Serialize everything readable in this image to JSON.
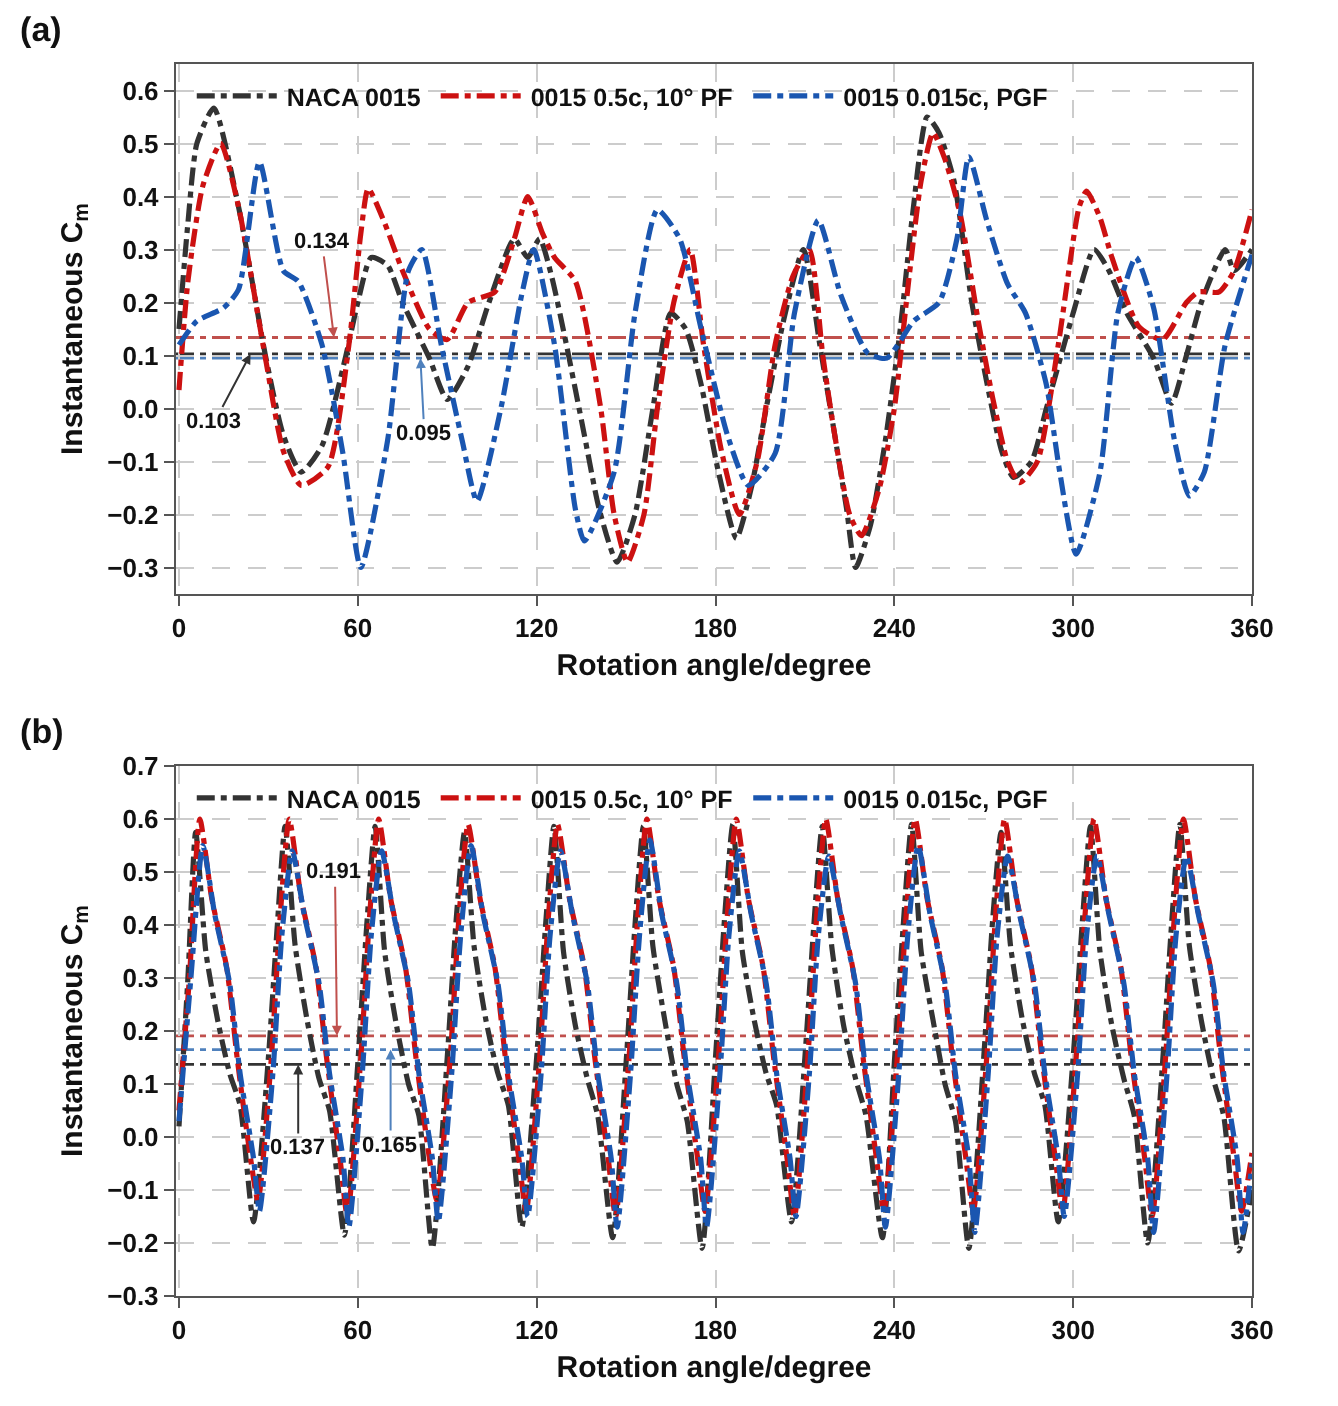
{
  "chart_data": [
    {
      "type": "line",
      "title": "(a)",
      "xlabel": "Rotation angle/degree",
      "ylabel": "Instantaneous C$_{m}$",
      "xlim": [
        -1,
        360
      ],
      "xticks": [
        0,
        60,
        120,
        180,
        240,
        300,
        360
      ],
      "ylim": [
        -0.35,
        0.65
      ],
      "yticks": [
        {
          "value": -0.3,
          "label": "−0.3"
        },
        {
          "value": -0.2,
          "label": "−0.2"
        },
        {
          "value": -0.1,
          "label": "−0.1"
        },
        {
          "value": 0,
          "label": "0.0"
        },
        {
          "value": 0.1,
          "label": "0.1"
        },
        {
          "value": 0.2,
          "label": "0.2"
        },
        {
          "value": 0.3,
          "label": "0.3"
        },
        {
          "value": 0.4,
          "label": "0.4"
        },
        {
          "value": 0.5,
          "label": "0.5"
        },
        {
          "value": 0.6,
          "label": "0.6"
        }
      ],
      "grid": true,
      "legend": "top left",
      "marker": "none",
      "line_style": "dashed",
      "series": [
        {
          "name": "NACA 0015",
          "color": "#333333",
          "x": [
            0,
            3,
            6,
            11.7,
            20,
            29,
            35,
            41,
            48,
            56,
            60,
            64.5,
            70,
            75,
            84,
            90,
            97,
            104,
            112.5,
            117,
            121,
            125,
            130,
            136,
            141,
            147,
            153,
            159,
            165,
            170,
            175,
            181,
            187,
            192,
            197,
            203,
            209.5,
            215,
            220,
            224,
            227,
            232,
            237,
            242,
            246,
            251,
            255,
            260,
            266,
            271,
            276,
            280,
            286,
            291,
            300,
            307,
            312,
            318,
            327,
            333,
            338,
            343,
            351,
            354,
            360
          ],
          "values": [
            0.15,
            0.35,
            0.5,
            0.567,
            0.38,
            0.1,
            -0.05,
            -0.12,
            -0.07,
            0.1,
            0.2,
            0.285,
            0.27,
            0.2,
            0.095,
            0.017,
            0.08,
            0.2,
            0.32,
            0.285,
            0.32,
            0.25,
            0.12,
            -0.05,
            -0.19,
            -0.29,
            -0.2,
            0.0,
            0.18,
            0.15,
            0.05,
            -0.12,
            -0.245,
            -0.15,
            0.0,
            0.17,
            0.3,
            0.12,
            -0.05,
            -0.19,
            -0.3,
            -0.22,
            -0.06,
            0.15,
            0.36,
            0.55,
            0.52,
            0.43,
            0.2,
            0.05,
            -0.08,
            -0.13,
            -0.1,
            0.0,
            0.18,
            0.3,
            0.26,
            0.18,
            0.095,
            0.01,
            0.1,
            0.2,
            0.3,
            0.26,
            0.3
          ]
        },
        {
          "name": "0015 0.5c, 10° PF",
          "color": "#cc1111",
          "x": [
            0,
            3,
            8,
            14,
            20,
            29,
            35,
            41,
            50,
            57,
            61,
            63.5,
            69,
            75,
            84,
            90,
            97,
            106,
            112.5,
            117,
            122,
            126,
            133,
            141.5,
            146,
            150.5,
            156,
            160.5,
            166,
            171.5,
            176,
            182,
            188,
            194,
            200,
            206,
            211.5,
            216,
            220,
            225,
            229,
            235,
            240,
            245,
            249,
            253,
            257,
            262,
            268,
            273,
            278,
            282,
            288,
            295,
            302,
            304.5,
            309,
            313,
            322,
            330,
            338,
            342,
            349,
            354,
            360
          ],
          "values": [
            0.035,
            0.24,
            0.42,
            0.5,
            0.38,
            0.095,
            -0.08,
            -0.145,
            -0.11,
            0.12,
            0.33,
            0.415,
            0.35,
            0.26,
            0.15,
            0.13,
            0.2,
            0.22,
            0.32,
            0.4,
            0.33,
            0.285,
            0.24,
            0.0,
            -0.2,
            -0.29,
            -0.2,
            0.0,
            0.2,
            0.3,
            0.12,
            -0.08,
            -0.2,
            -0.1,
            0.12,
            0.25,
            0.3,
            0.1,
            -0.05,
            -0.2,
            -0.24,
            -0.15,
            0.0,
            0.25,
            0.43,
            0.52,
            0.47,
            0.37,
            0.17,
            0.02,
            -0.1,
            -0.14,
            -0.1,
            0.12,
            0.38,
            0.41,
            0.36,
            0.285,
            0.155,
            0.13,
            0.2,
            0.22,
            0.22,
            0.26,
            0.375
          ]
        },
        {
          "name": "0015 0.015c, PGF",
          "color": "#1a56b0",
          "x": [
            0,
            6,
            15,
            20,
            27,
            35,
            40,
            48,
            55,
            61,
            70,
            77,
            81.5,
            88,
            95,
            100,
            108,
            115,
            119,
            126,
            133,
            136,
            146,
            153,
            160.5,
            168,
            175,
            184,
            191,
            200,
            206.5,
            214.5,
            222,
            231,
            237.5,
            246.5,
            255,
            261,
            265,
            271,
            278,
            284,
            291,
            295.5,
            301,
            309,
            315,
            321,
            327,
            334,
            339,
            344,
            351,
            360
          ],
          "values": [
            0.12,
            0.165,
            0.19,
            0.225,
            0.465,
            0.26,
            0.24,
            0.12,
            -0.085,
            -0.3,
            -0.06,
            0.26,
            0.3,
            0.12,
            -0.06,
            -0.175,
            0.0,
            0.215,
            0.3,
            0.12,
            -0.19,
            -0.25,
            -0.12,
            0.18,
            0.375,
            0.32,
            0.155,
            -0.05,
            -0.145,
            -0.085,
            0.18,
            0.355,
            0.215,
            0.105,
            0.095,
            0.165,
            0.2,
            0.32,
            0.475,
            0.355,
            0.235,
            0.18,
            0.045,
            -0.12,
            -0.275,
            -0.12,
            0.18,
            0.285,
            0.19,
            -0.06,
            -0.165,
            -0.12,
            0.12,
            0.29
          ]
        }
      ],
      "ref_lines": [
        {
          "axis": "y",
          "value": 0.134,
          "color": "#c0504d",
          "line_style": "dashed"
        },
        {
          "axis": "y",
          "value": 0.103,
          "color": "#333333",
          "line_style": "dashed"
        },
        {
          "axis": "y",
          "value": 0.095,
          "color": "#4f81bd",
          "line_style": "dashed"
        }
      ],
      "annotations": [
        {
          "text": "0.134",
          "x": 52,
          "y": 0.134
        },
        {
          "text": "0.103",
          "x": 24,
          "y": 0.103
        },
        {
          "text": "0.095",
          "x": 81,
          "y": 0.095
        }
      ]
    },
    {
      "type": "line",
      "title": "(b)",
      "xlabel": "Rotation angle/degree",
      "ylabel": "Instantaneous C$_{m}$",
      "xlim": [
        -1,
        360
      ],
      "xticks": [
        0,
        60,
        120,
        180,
        240,
        300,
        360
      ],
      "ylim": [
        -0.3,
        0.7
      ],
      "yticks": [
        {
          "value": -0.3,
          "label": "−0.3"
        },
        {
          "value": -0.2,
          "label": "−0.2"
        },
        {
          "value": -0.1,
          "label": "−0.1"
        },
        {
          "value": 0,
          "label": "0.0"
        },
        {
          "value": 0.1,
          "label": "0.1"
        },
        {
          "value": 0.2,
          "label": "0.2"
        },
        {
          "value": 0.3,
          "label": "0.3"
        },
        {
          "value": 0.4,
          "label": "0.4"
        },
        {
          "value": 0.5,
          "label": "0.5"
        },
        {
          "value": 0.6,
          "label": "0.6"
        },
        {
          "value": 0.7,
          "label": "0.7"
        }
      ],
      "grid": true,
      "legend": "top left",
      "marker": "none",
      "line_style": "dashed",
      "series": [
        {
          "name": "NACA 0015",
          "color": "#333333",
          "x": [
            0,
            3,
            5.6,
            9,
            13,
            17,
            20.5,
            25,
            30,
            33,
            35.6,
            39,
            43,
            47,
            50.5,
            55.5,
            60,
            63,
            65.8,
            69,
            73,
            77,
            80.5,
            85,
            90,
            93,
            95.8,
            99,
            103,
            107,
            110.5,
            115,
            120,
            123,
            125.8,
            129,
            133,
            137,
            140.5,
            145.5,
            150,
            153,
            155.8,
            159,
            163,
            167,
            170.5,
            175.5,
            180,
            183,
            185.8,
            189,
            193,
            197,
            200.5,
            205.5,
            210,
            213,
            215.8,
            219,
            223,
            227,
            230.5,
            236,
            240,
            243,
            245.8,
            249,
            253,
            257,
            260.5,
            265,
            270,
            273,
            275.8,
            279,
            283,
            287,
            290.5,
            295,
            300,
            303,
            305.8,
            309,
            313,
            317,
            320.5,
            325,
            330,
            333,
            335.8,
            339,
            343,
            347,
            350.5,
            355.5,
            360
          ],
          "values": [
            0.02,
            0.3,
            0.575,
            0.35,
            0.22,
            0.12,
            0.06,
            -0.16,
            0.15,
            0.4,
            0.586,
            0.36,
            0.22,
            0.11,
            0.05,
            -0.185,
            0.14,
            0.4,
            0.586,
            0.35,
            0.21,
            0.1,
            0.04,
            -0.21,
            0.15,
            0.41,
            0.575,
            0.36,
            0.22,
            0.12,
            0.06,
            -0.17,
            0.15,
            0.4,
            0.586,
            0.35,
            0.21,
            0.11,
            0.04,
            -0.19,
            0.14,
            0.4,
            0.586,
            0.36,
            0.22,
            0.1,
            0.03,
            -0.21,
            0.15,
            0.41,
            0.59,
            0.35,
            0.22,
            0.12,
            0.06,
            -0.16,
            0.15,
            0.4,
            0.586,
            0.36,
            0.21,
            0.11,
            0.04,
            -0.19,
            0.14,
            0.4,
            0.59,
            0.35,
            0.22,
            0.1,
            0.03,
            -0.21,
            0.15,
            0.41,
            0.575,
            0.36,
            0.22,
            0.12,
            0.06,
            -0.16,
            0.15,
            0.4,
            0.586,
            0.35,
            0.21,
            0.11,
            0.04,
            -0.2,
            0.14,
            0.4,
            0.59,
            0.36,
            0.22,
            0.11,
            0.04,
            -0.215,
            -0.1
          ]
        },
        {
          "name": "0015 0.5c, 10° PF",
          "color": "#cc1111",
          "x": [
            0,
            3.5,
            7,
            11,
            16,
            19.5,
            24,
            26.5,
            31,
            34,
            37,
            41,
            46,
            49.5,
            54,
            56.5,
            61,
            64,
            67,
            71,
            76,
            79.5,
            84,
            86.5,
            91,
            94,
            97,
            101,
            106,
            109.5,
            114,
            116.5,
            121,
            124,
            127,
            131,
            136,
            139.5,
            144,
            146.5,
            151,
            154,
            157,
            161,
            166,
            169.5,
            174,
            176.5,
            181,
            184,
            187,
            191,
            196,
            199.5,
            204,
            206.5,
            211,
            214,
            217,
            221,
            226,
            229.5,
            234,
            236.5,
            241,
            244,
            247,
            251,
            256,
            259.5,
            264,
            266.5,
            271,
            274,
            277,
            281,
            286,
            289.5,
            294,
            296.5,
            301,
            304,
            307,
            311,
            316,
            319.5,
            324,
            326.5,
            331,
            334,
            337,
            341,
            346,
            349.5,
            354,
            356.5,
            360
          ],
          "values": [
            0.05,
            0.3,
            0.6,
            0.45,
            0.32,
            0.15,
            -0.04,
            -0.12,
            0.15,
            0.42,
            0.6,
            0.45,
            0.32,
            0.15,
            -0.04,
            -0.15,
            0.15,
            0.42,
            0.6,
            0.45,
            0.32,
            0.15,
            -0.04,
            -0.12,
            0.15,
            0.42,
            0.59,
            0.45,
            0.32,
            0.15,
            -0.04,
            -0.14,
            0.15,
            0.42,
            0.59,
            0.45,
            0.32,
            0.15,
            -0.04,
            -0.15,
            0.15,
            0.42,
            0.6,
            0.45,
            0.32,
            0.15,
            -0.04,
            -0.14,
            0.15,
            0.42,
            0.6,
            0.45,
            0.32,
            0.15,
            -0.04,
            -0.15,
            0.15,
            0.42,
            0.6,
            0.45,
            0.32,
            0.15,
            -0.04,
            -0.14,
            0.15,
            0.42,
            0.6,
            0.45,
            0.32,
            0.15,
            -0.04,
            -0.14,
            0.15,
            0.42,
            0.6,
            0.45,
            0.32,
            0.15,
            -0.04,
            -0.14,
            0.15,
            0.42,
            0.6,
            0.45,
            0.32,
            0.15,
            -0.04,
            -0.15,
            0.15,
            0.42,
            0.6,
            0.45,
            0.32,
            0.15,
            -0.04,
            -0.14,
            -0.03
          ]
        },
        {
          "name": "0015 0.015c, PGF",
          "color": "#1a56b0",
          "x": [
            0,
            4,
            8,
            12,
            17,
            20.5,
            25,
            27,
            31.5,
            34.5,
            38,
            42,
            47,
            50.5,
            55,
            57,
            61.5,
            64.5,
            68,
            72,
            77,
            80.5,
            85,
            87,
            91.5,
            94.5,
            98,
            102,
            107,
            110.5,
            115,
            117,
            121.5,
            124.5,
            128,
            132,
            137,
            140.5,
            145,
            147,
            151.5,
            154.5,
            158,
            162,
            167,
            170.5,
            175,
            177,
            181.5,
            184.5,
            188,
            192,
            197,
            200.5,
            205,
            207,
            211.5,
            214.5,
            218,
            222,
            227,
            230.5,
            235,
            237,
            241.5,
            244.5,
            248,
            252,
            257,
            260.5,
            265,
            267,
            271.5,
            274.5,
            278,
            282,
            287,
            290.5,
            295,
            297,
            301.5,
            304.5,
            308,
            312,
            317,
            320.5,
            325,
            327,
            331.5,
            334.5,
            338,
            342,
            347,
            350.5,
            355,
            357,
            360
          ],
          "values": [
            0.03,
            0.3,
            0.55,
            0.42,
            0.29,
            0.12,
            -0.04,
            -0.14,
            0.12,
            0.38,
            0.54,
            0.42,
            0.29,
            0.12,
            -0.04,
            -0.17,
            0.12,
            0.38,
            0.54,
            0.42,
            0.29,
            0.12,
            -0.04,
            -0.16,
            0.12,
            0.38,
            0.55,
            0.42,
            0.29,
            0.12,
            -0.04,
            -0.15,
            0.12,
            0.38,
            0.54,
            0.42,
            0.29,
            0.12,
            -0.04,
            -0.17,
            0.12,
            0.38,
            0.56,
            0.42,
            0.29,
            0.12,
            -0.04,
            -0.17,
            0.12,
            0.38,
            0.54,
            0.42,
            0.29,
            0.12,
            -0.04,
            -0.15,
            0.12,
            0.38,
            0.53,
            0.42,
            0.29,
            0.12,
            -0.04,
            -0.17,
            0.12,
            0.38,
            0.55,
            0.42,
            0.29,
            0.12,
            -0.04,
            -0.18,
            0.12,
            0.38,
            0.53,
            0.42,
            0.29,
            0.12,
            -0.04,
            -0.15,
            0.12,
            0.38,
            0.53,
            0.42,
            0.29,
            0.12,
            -0.04,
            -0.18,
            0.12,
            0.38,
            0.53,
            0.42,
            0.29,
            0.12,
            -0.04,
            -0.18,
            -0.05
          ]
        }
      ],
      "ref_lines": [
        {
          "axis": "y",
          "value": 0.191,
          "color": "#c0504d",
          "line_style": "dashed"
        },
        {
          "axis": "y",
          "value": 0.137,
          "color": "#333333",
          "line_style": "dashed"
        },
        {
          "axis": "y",
          "value": 0.165,
          "color": "#4f81bd",
          "line_style": "dashed"
        }
      ],
      "annotations": [
        {
          "text": "0.191",
          "x": 53,
          "y": 0.191
        },
        {
          "text": "0.137",
          "x": 40,
          "y": 0.137
        },
        {
          "text": "0.165",
          "x": 71,
          "y": 0.165
        }
      ]
    }
  ]
}
